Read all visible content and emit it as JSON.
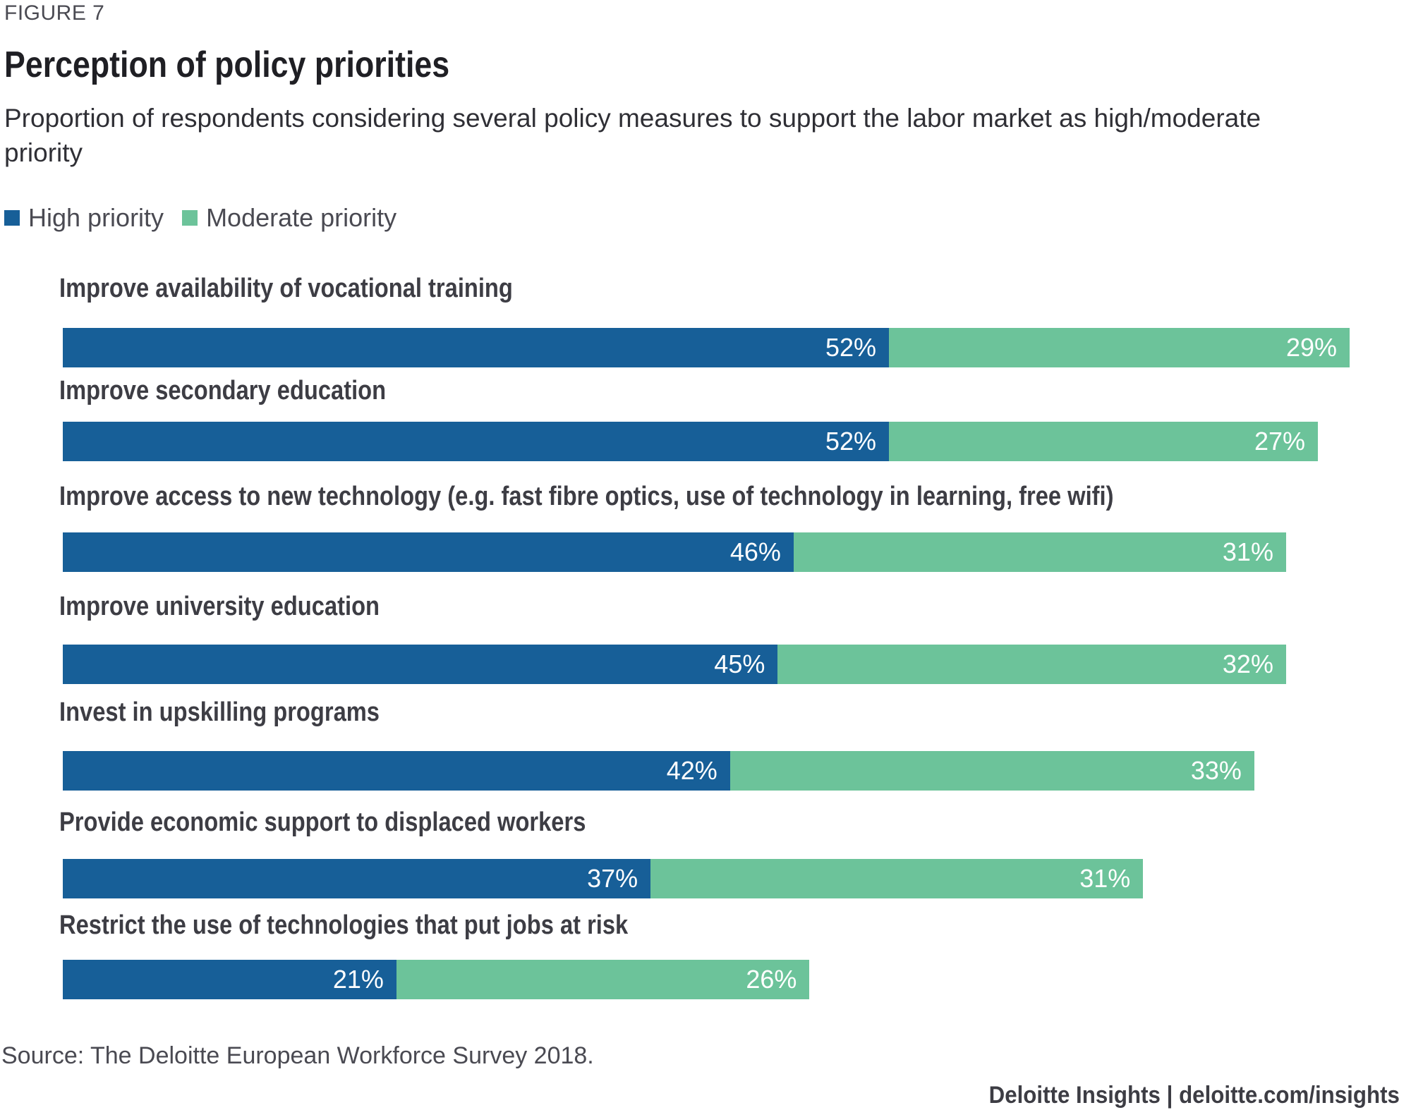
{
  "figure_label": "FIGURE 7",
  "title": "Perception of policy priorities",
  "subtitle": "Proportion of respondents considering several policy measures to support the labor market as high/moderate priority",
  "colors": {
    "high": "#175f98",
    "moderate": "#6cc39a"
  },
  "legend": [
    {
      "label": "High priority",
      "color": "#175f98"
    },
    {
      "label": "Moderate priority",
      "color": "#6cc39a"
    }
  ],
  "source": "Source: The Deloitte European Workforce Survey 2018.",
  "footer": "Deloitte Insights | deloitte.com/insights",
  "chart_data": {
    "type": "bar",
    "orientation": "horizontal",
    "stacked": true,
    "title": "Perception of policy priorities",
    "subtitle": "Proportion of respondents considering several policy measures to support the labor market as high/moderate priority",
    "xlabel": "",
    "ylabel": "",
    "unit": "%",
    "grid": false,
    "legend_position": "top-left",
    "categories": [
      "Improve availability of vocational training",
      "Improve secondary education",
      "Improve access to new technology (e.g. fast fibre optics, use of technology in learning, free wifi)",
      "Improve university education",
      "Invest in upskilling programs",
      "Provide economic support to displaced workers",
      "Restrict the use of technologies that put jobs at risk"
    ],
    "series": [
      {
        "name": "High priority",
        "values": [
          52,
          52,
          46,
          45,
          42,
          37,
          21
        ]
      },
      {
        "name": "Moderate priority",
        "values": [
          29,
          27,
          31,
          32,
          33,
          31,
          26
        ]
      }
    ],
    "xlim": [
      0,
      81
    ]
  }
}
